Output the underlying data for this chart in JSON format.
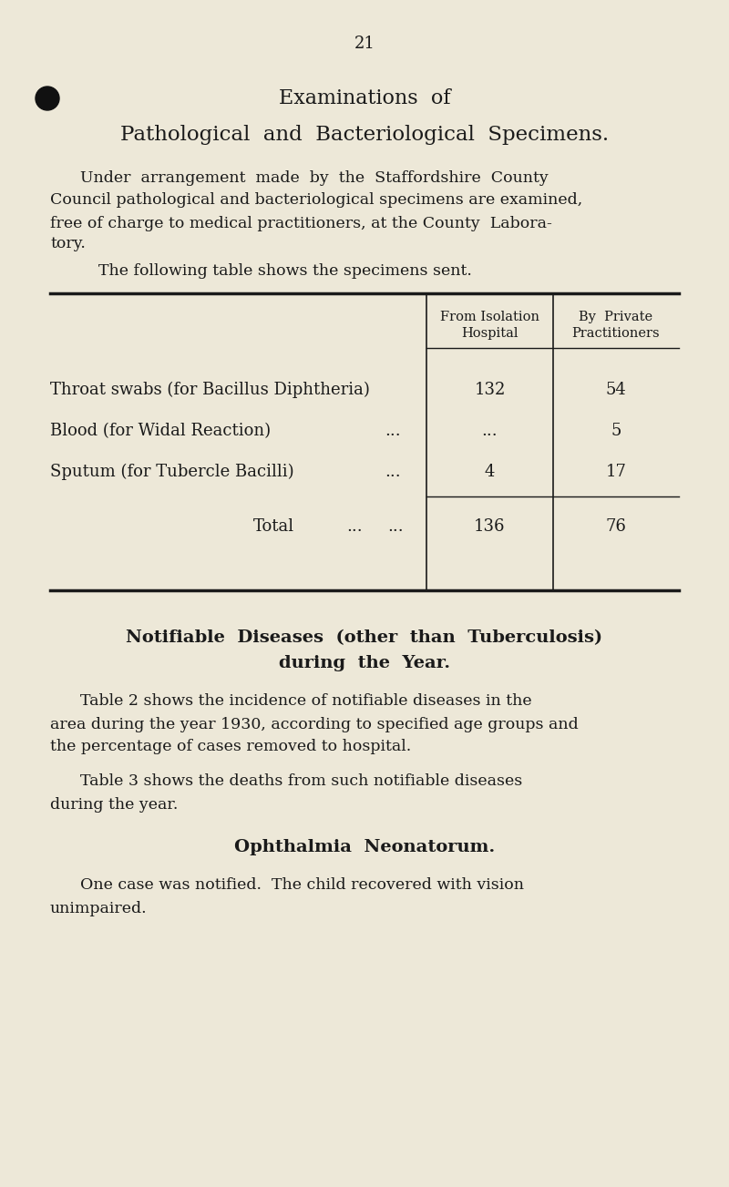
{
  "bg_color": "#ede8d8",
  "text_color": "#1a1a1a",
  "page_number": "21",
  "heading1": "Examinations  of",
  "heading2": "Pathological  and  Bacteriological  Specimens.",
  "para1_line1": "Under  arrangement  made  by  the  Staffordshire  County",
  "para1_line2": "Council pathological and bacteriological specimens are examined,",
  "para1_line3": "free of charge to medical practitioners, at the County  Labora-",
  "para1_line4": "tory.",
  "para1_line5": "The following table shows the specimens sent.",
  "col_header1_line1": "From Isolation",
  "col_header1_line2": "Hospital",
  "col_header2_line1": "By  Private",
  "col_header2_line2": "Practitioners",
  "row1_label": "Throat swabs (for Bacillus Diphtheria)",
  "row1_col1": "132",
  "row1_col2": "54",
  "row2_label": "Blood (for Widal Reaction)",
  "row2_dots": "...",
  "row2_col1": "...",
  "row2_col2": "5",
  "row3_label": "Sputum (for Tubercle Bacilli)",
  "row3_dots": "...",
  "row3_col1": "4",
  "row3_col2": "17",
  "total_label": "Total",
  "total_dots1": "...",
  "total_dots2": "...",
  "total_col1": "136",
  "total_col2": "76",
  "notif_heading1": "Notifiable  Diseases  (other  than  Tuberculosis)",
  "notif_heading2": "during  the  Year.",
  "notif_para1_line1": "Table 2 shows the incidence of notifiable diseases in the",
  "notif_para1_line2": "area during the year 1930, according to specified age groups and",
  "notif_para1_line3": "the percentage of cases removed to hospital.",
  "notif_para2_line1": "Table 3 shows the deaths from such notifiable diseases",
  "notif_para2_line2": "during the year.",
  "opth_heading": "Ophthalmia  Neonatorum.",
  "opth_para_line1": "One case was notified.  The child recovered with vision",
  "opth_para_line2": "unimpaired."
}
